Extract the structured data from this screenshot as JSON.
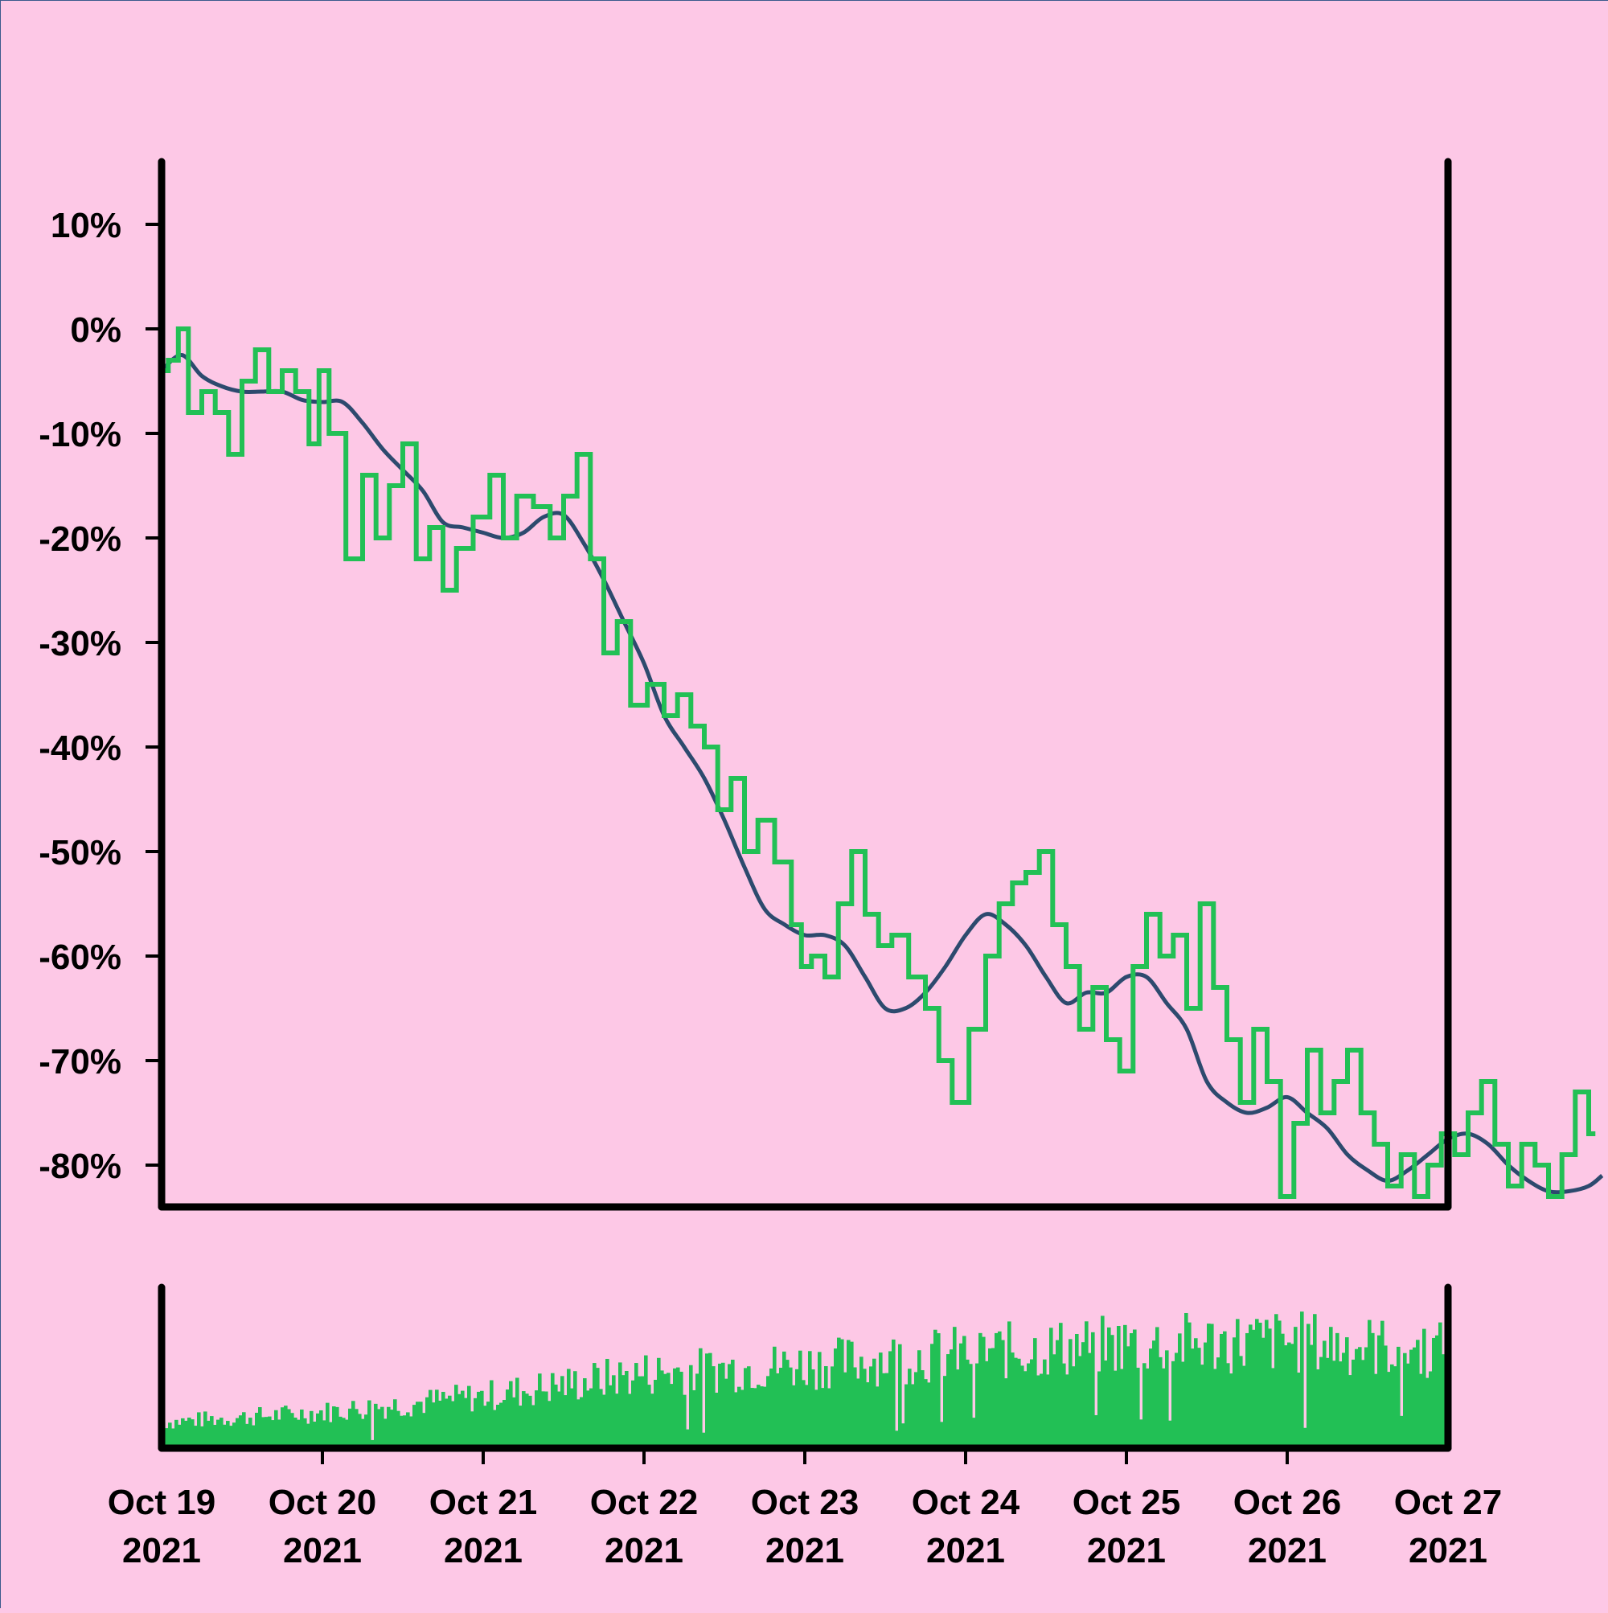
{
  "colors": {
    "background": "#fdc8e6",
    "price_line": "#22c055",
    "moving_average": "#2d4a6e",
    "volume_bars": "#22c055",
    "axis": "#000000"
  },
  "chart_data": {
    "type": "line",
    "title": "",
    "xlabel": "",
    "ylabel": "",
    "y_unit": "%",
    "ylim": [
      -84,
      16
    ],
    "xlim": [
      "2021-10-19",
      "2021-10-27"
    ],
    "y_ticks": [
      "10%",
      "0%",
      "-10%",
      "-20%",
      "-30%",
      "-40%",
      "-50%",
      "-60%",
      "-70%",
      "-80%"
    ],
    "y_tick_values": [
      10,
      0,
      -10,
      -20,
      -30,
      -40,
      -50,
      -60,
      -70,
      -80
    ],
    "x_ticks": [
      {
        "date": "2021-10-19",
        "line1": "Oct 19",
        "line2": "2021"
      },
      {
        "date": "2021-10-20",
        "line1": "Oct 20",
        "line2": "2021"
      },
      {
        "date": "2021-10-21",
        "line1": "Oct 21",
        "line2": "2021"
      },
      {
        "date": "2021-10-22",
        "line1": "Oct 22",
        "line2": "2021"
      },
      {
        "date": "2021-10-23",
        "line1": "Oct 23",
        "line2": "2021"
      },
      {
        "date": "2021-10-24",
        "line1": "Oct 24",
        "line2": "2021"
      },
      {
        "date": "2021-10-25",
        "line1": "Oct 25",
        "line2": "2021"
      },
      {
        "date": "2021-10-26",
        "line1": "Oct 26",
        "line2": "2021"
      },
      {
        "date": "2021-10-27",
        "line1": "Oct 27",
        "line2": "2021"
      }
    ],
    "grid": false,
    "legend": "none",
    "series": [
      {
        "values": [
          [
            "2021-10-19 00:00",
            -4
          ],
          [
            "2021-10-19 02:00",
            -3
          ],
          [
            "2021-10-19 03:00",
            0
          ],
          [
            "2021-10-19 05:00",
            -8
          ],
          [
            "2021-10-19 07:00",
            -6
          ],
          [
            "2021-10-19 09:00",
            -8
          ],
          [
            "2021-10-19 11:00",
            -12
          ],
          [
            "2021-10-19 13:00",
            -5
          ],
          [
            "2021-10-19 15:00",
            -2
          ],
          [
            "2021-10-19 17:00",
            -6
          ],
          [
            "2021-10-19 19:00",
            -4
          ],
          [
            "2021-10-19 21:00",
            -6
          ],
          [
            "2021-10-19 23:00",
            -11
          ],
          [
            "2021-10-20 00:00",
            -4
          ],
          [
            "2021-10-20 02:00",
            -10
          ],
          [
            "2021-10-20 05:00",
            -22
          ],
          [
            "2021-10-20 07:00",
            -14
          ],
          [
            "2021-10-20 09:00",
            -20
          ],
          [
            "2021-10-20 11:00",
            -15
          ],
          [
            "2021-10-20 13:00",
            -11
          ],
          [
            "2021-10-20 15:00",
            -22
          ],
          [
            "2021-10-20 17:00",
            -19
          ],
          [
            "2021-10-20 19:00",
            -25
          ],
          [
            "2021-10-20 21:00",
            -21
          ],
          [
            "2021-10-21 00:00",
            -18
          ],
          [
            "2021-10-21 02:00",
            -14
          ],
          [
            "2021-10-21 04:00",
            -20
          ],
          [
            "2021-10-21 06:00",
            -16
          ],
          [
            "2021-10-21 09:00",
            -17
          ],
          [
            "2021-10-21 11:00",
            -20
          ],
          [
            "2021-10-21 13:00",
            -16
          ],
          [
            "2021-10-21 15:00",
            -12
          ],
          [
            "2021-10-21 17:00",
            -22
          ],
          [
            "2021-10-21 19:00",
            -31
          ],
          [
            "2021-10-21 21:00",
            -28
          ],
          [
            "2021-10-21 23:00",
            -36
          ],
          [
            "2021-10-22 02:00",
            -34
          ],
          [
            "2021-10-22 04:00",
            -37
          ],
          [
            "2021-10-22 06:00",
            -35
          ],
          [
            "2021-10-22 08:00",
            -38
          ],
          [
            "2021-10-22 10:00",
            -40
          ],
          [
            "2021-10-22 12:00",
            -46
          ],
          [
            "2021-10-22 14:00",
            -43
          ],
          [
            "2021-10-22 16:00",
            -50
          ],
          [
            "2021-10-22 18:00",
            -47
          ],
          [
            "2021-10-22 21:00",
            -51
          ],
          [
            "2021-10-22 23:00",
            -57
          ],
          [
            "2021-10-23 00:00",
            -61
          ],
          [
            "2021-10-23 02:00",
            -60
          ],
          [
            "2021-10-23 04:00",
            -62
          ],
          [
            "2021-10-23 06:00",
            -55
          ],
          [
            "2021-10-23 08:00",
            -50
          ],
          [
            "2021-10-23 10:00",
            -56
          ],
          [
            "2021-10-23 12:00",
            -59
          ],
          [
            "2021-10-23 14:00",
            -58
          ],
          [
            "2021-10-23 17:00",
            -62
          ],
          [
            "2021-10-23 19:00",
            -65
          ],
          [
            "2021-10-23 21:00",
            -70
          ],
          [
            "2021-10-23 23:00",
            -74
          ],
          [
            "2021-10-24 02:00",
            -67
          ],
          [
            "2021-10-24 04:00",
            -60
          ],
          [
            "2021-10-24 06:00",
            -55
          ],
          [
            "2021-10-24 08:00",
            -53
          ],
          [
            "2021-10-24 10:00",
            -52
          ],
          [
            "2021-10-24 12:00",
            -50
          ],
          [
            "2021-10-24 14:00",
            -57
          ],
          [
            "2021-10-24 16:00",
            -61
          ],
          [
            "2021-10-24 18:00",
            -67
          ],
          [
            "2021-10-24 20:00",
            -63
          ],
          [
            "2021-10-24 22:00",
            -68
          ],
          [
            "2021-10-25 00:00",
            -71
          ],
          [
            "2021-10-25 02:00",
            -61
          ],
          [
            "2021-10-25 04:00",
            -56
          ],
          [
            "2021-10-25 06:00",
            -60
          ],
          [
            "2021-10-25 08:00",
            -58
          ],
          [
            "2021-10-25 10:00",
            -65
          ],
          [
            "2021-10-25 12:00",
            -55
          ],
          [
            "2021-10-25 14:00",
            -63
          ],
          [
            "2021-10-25 16:00",
            -68
          ],
          [
            "2021-10-25 18:00",
            -74
          ],
          [
            "2021-10-25 20:00",
            -67
          ],
          [
            "2021-10-25 22:00",
            -72
          ],
          [
            "2021-10-26 00:00",
            -83
          ],
          [
            "2021-10-26 02:00",
            -76
          ],
          [
            "2021-10-26 04:00",
            -69
          ],
          [
            "2021-10-26 06:00",
            -75
          ],
          [
            "2021-10-26 08:00",
            -72
          ],
          [
            "2021-10-26 10:00",
            -69
          ],
          [
            "2021-10-26 12:00",
            -75
          ],
          [
            "2021-10-26 14:00",
            -78
          ],
          [
            "2021-10-26 16:00",
            -82
          ],
          [
            "2021-10-26 18:00",
            -79
          ],
          [
            "2021-10-26 20:00",
            -83
          ],
          [
            "2021-10-26 22:00",
            -80
          ],
          [
            "2021-10-27 00:00",
            -77
          ],
          [
            "2021-10-27 02:00",
            -79
          ],
          [
            "2021-10-27 04:00",
            -75
          ],
          [
            "2021-10-27 06:00",
            -72
          ],
          [
            "2021-10-27 08:00",
            -78
          ],
          [
            "2021-10-27 10:00",
            -82
          ],
          [
            "2021-10-27 12:00",
            -78
          ],
          [
            "2021-10-27 14:00",
            -80
          ],
          [
            "2021-10-27 16:00",
            -83
          ],
          [
            "2021-10-27 18:00",
            -79
          ],
          [
            "2021-10-27 20:00",
            -73
          ],
          [
            "2021-10-27 22:00",
            -77
          ]
        ]
      },
      {
        "values": [
          [
            "2021-10-19 00:00",
            -4
          ],
          [
            "2021-10-19 03:00",
            -2.5
          ],
          [
            "2021-10-19 06:00",
            -4.5
          ],
          [
            "2021-10-19 09:00",
            -5.5
          ],
          [
            "2021-10-19 12:00",
            -6
          ],
          [
            "2021-10-19 15:00",
            -6
          ],
          [
            "2021-10-19 18:00",
            -6
          ],
          [
            "2021-10-19 21:00",
            -6.8
          ],
          [
            "2021-10-20 00:00",
            -7
          ],
          [
            "2021-10-20 03:00",
            -7
          ],
          [
            "2021-10-20 06:00",
            -9
          ],
          [
            "2021-10-20 09:00",
            -11.5
          ],
          [
            "2021-10-20 12:00",
            -13.5
          ],
          [
            "2021-10-20 15:00",
            -15.5
          ],
          [
            "2021-10-20 18:00",
            -18.5
          ],
          [
            "2021-10-20 21:00",
            -19
          ],
          [
            "2021-10-21 00:00",
            -19.5
          ],
          [
            "2021-10-21 03:00",
            -20
          ],
          [
            "2021-10-21 06:00",
            -19.5
          ],
          [
            "2021-10-21 09:00",
            -18
          ],
          [
            "2021-10-21 12:00",
            -17.8
          ],
          [
            "2021-10-21 15:00",
            -20.5
          ],
          [
            "2021-10-21 18:00",
            -24
          ],
          [
            "2021-10-21 21:00",
            -28
          ],
          [
            "2021-10-22 00:00",
            -32
          ],
          [
            "2021-10-22 03:00",
            -37
          ],
          [
            "2021-10-22 06:00",
            -40
          ],
          [
            "2021-10-22 09:00",
            -43
          ],
          [
            "2021-10-22 12:00",
            -47
          ],
          [
            "2021-10-22 15:00",
            -51.5
          ],
          [
            "2021-10-22 18:00",
            -55.5
          ],
          [
            "2021-10-22 21:00",
            -57
          ],
          [
            "2021-10-23 00:00",
            -58
          ],
          [
            "2021-10-23 03:00",
            -58
          ],
          [
            "2021-10-23 06:00",
            -59
          ],
          [
            "2021-10-23 09:00",
            -62
          ],
          [
            "2021-10-23 12:00",
            -65
          ],
          [
            "2021-10-23 15:00",
            -65
          ],
          [
            "2021-10-23 18:00",
            -63.5
          ],
          [
            "2021-10-23 21:00",
            -61
          ],
          [
            "2021-10-24 00:00",
            -58
          ],
          [
            "2021-10-24 03:00",
            -56
          ],
          [
            "2021-10-24 06:00",
            -57
          ],
          [
            "2021-10-24 09:00",
            -59
          ],
          [
            "2021-10-24 12:00",
            -62
          ],
          [
            "2021-10-24 15:00",
            -64.5
          ],
          [
            "2021-10-24 18:00",
            -63.5
          ],
          [
            "2021-10-24 21:00",
            -63.5
          ],
          [
            "2021-10-25 00:00",
            -62
          ],
          [
            "2021-10-25 03:00",
            -62
          ],
          [
            "2021-10-25 06:00",
            -64.5
          ],
          [
            "2021-10-25 09:00",
            -67
          ],
          [
            "2021-10-25 12:00",
            -72
          ],
          [
            "2021-10-25 15:00",
            -74
          ],
          [
            "2021-10-25 18:00",
            -75
          ],
          [
            "2021-10-25 21:00",
            -74.5
          ],
          [
            "2021-10-26 00:00",
            -73.5
          ],
          [
            "2021-10-26 03:00",
            -75
          ],
          [
            "2021-10-26 06:00",
            -76.5
          ],
          [
            "2021-10-26 09:00",
            -79
          ],
          [
            "2021-10-26 12:00",
            -80.5
          ],
          [
            "2021-10-26 15:00",
            -81.5
          ],
          [
            "2021-10-26 18:00",
            -80.5
          ],
          [
            "2021-10-26 21:00",
            -79
          ],
          [
            "2021-10-27 00:00",
            -77.5
          ],
          [
            "2021-10-27 03:00",
            -77
          ],
          [
            "2021-10-27 06:00",
            -78
          ],
          [
            "2021-10-27 09:00",
            -80
          ],
          [
            "2021-10-27 12:00",
            -81.5
          ],
          [
            "2021-10-27 15:00",
            -82.5
          ],
          [
            "2021-10-27 18:00",
            -82.5
          ],
          [
            "2021-10-27 21:00",
            -82
          ],
          [
            "2021-10-27 23:00",
            -81
          ]
        ]
      }
    ],
    "volume": {
      "type": "bar",
      "trend": [
        [
          "2021-10-19",
          0.18
        ],
        [
          "2021-10-20",
          0.25
        ],
        [
          "2021-10-21",
          0.36
        ],
        [
          "2021-10-22",
          0.52
        ],
        [
          "2021-10-23",
          0.58
        ],
        [
          "2021-10-24",
          0.66
        ],
        [
          "2021-10-25",
          0.72
        ],
        [
          "2021-10-26",
          0.74
        ],
        [
          "2021-10-27",
          0.68
        ]
      ]
    }
  }
}
